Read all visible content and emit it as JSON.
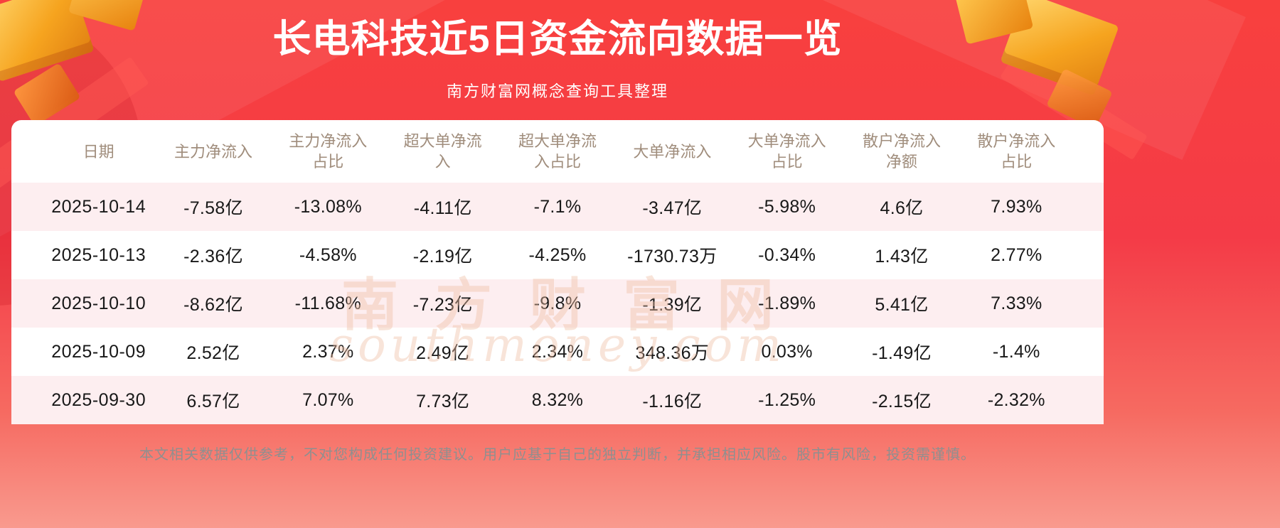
{
  "page": {
    "title": "长电科技近5日资金流向数据一览",
    "subtitle": "南方财富网概念查询工具整理"
  },
  "chart_data": {
    "type": "table",
    "title": "长电科技近5日资金流向数据一览",
    "subtitle": "南方财富网概念查询工具整理",
    "columns": [
      "日期",
      "主力净流入",
      "主力净流入占比",
      "超大单净流入",
      "超大单净流入占比",
      "大单净流入",
      "大单净流入占比",
      "散户净流入净额",
      "散户净流入占比"
    ],
    "rows": [
      [
        "2025-10-14",
        "-7.58亿",
        "-13.08%",
        "-4.11亿",
        "-7.1%",
        "-3.47亿",
        "-5.98%",
        "4.6亿",
        "7.93%"
      ],
      [
        "2025-10-13",
        "-2.36亿",
        "-4.58%",
        "-2.19亿",
        "-4.25%",
        "-1730.73万",
        "-0.34%",
        "1.43亿",
        "2.77%"
      ],
      [
        "2025-10-10",
        "-8.62亿",
        "-11.68%",
        "-7.23亿",
        "-9.8%",
        "-1.39亿",
        "-1.89%",
        "5.41亿",
        "7.33%"
      ],
      [
        "2025-10-09",
        "2.52亿",
        "2.37%",
        "2.49亿",
        "2.34%",
        "348.36万",
        "0.03%",
        "-1.49亿",
        "-1.4%"
      ],
      [
        "2025-09-30",
        "6.57亿",
        "7.07%",
        "7.73亿",
        "8.32%",
        "-1.16亿",
        "-1.25%",
        "-2.15亿",
        "-2.32%"
      ]
    ]
  },
  "watermark": {
    "cn": "南方财富网",
    "en": "southmoney.com"
  },
  "footer": {
    "disclaimer": "本文相关数据仅供参考，不对您构成任何投资建议。用户应基于自己的独立判断，并承担相应风险。股市有风险，投资需谨慎。"
  },
  "colors": {
    "bg_top": "#f8403e",
    "bg_mid": "#f43b47",
    "bg_bottom": "#f99a8e",
    "table_bg": "#ffffff",
    "row_alt": "#fdeef0",
    "header_text": "#a08d7c",
    "cell_text": "#181818",
    "title_text": "#ffffff",
    "footer_text": "#8f8f8f",
    "gold": "#f6a41f",
    "watermark": "#f0bfa5"
  }
}
